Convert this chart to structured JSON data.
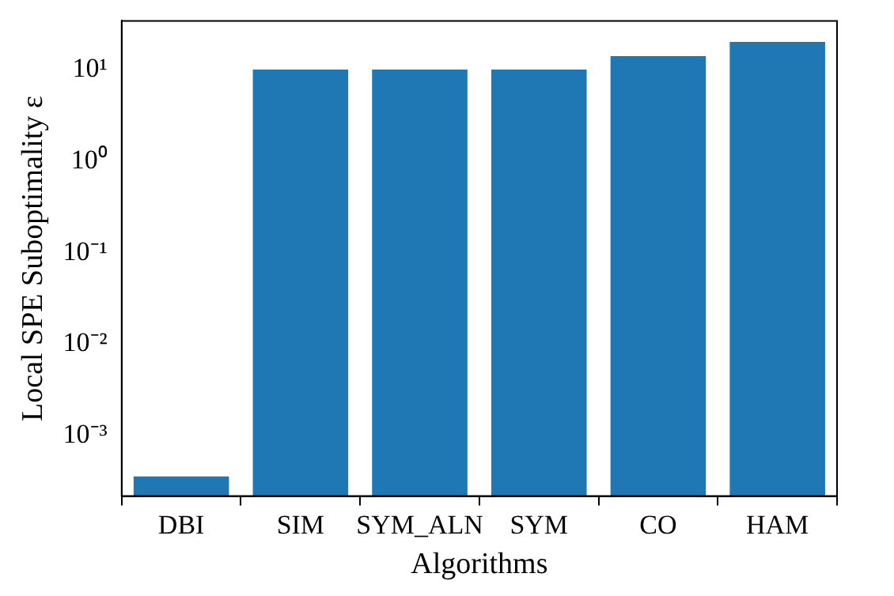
{
  "chart_data": {
    "type": "bar",
    "xlabel": "Algorithms",
    "ylabel": "Local SPE Suboptimality ε",
    "categories": [
      "DBI",
      "SIM",
      "SYM_ALN",
      "SYM",
      "CO",
      "HAM"
    ],
    "values": [
      0.00036,
      10,
      10,
      10,
      14,
      20
    ],
    "color": "#1f77b4",
    "log": "y",
    "ylim": [
      0.00022,
      34
    ],
    "yticks": [
      {
        "value": 0.001,
        "label": "10⁻³"
      },
      {
        "value": 0.01,
        "label": "10⁻²"
      },
      {
        "value": 0.1,
        "label": "10⁻¹"
      },
      {
        "value": 1,
        "label": "10⁰"
      },
      {
        "value": 10,
        "label": "10¹"
      }
    ],
    "grid": false,
    "legend": false
  }
}
